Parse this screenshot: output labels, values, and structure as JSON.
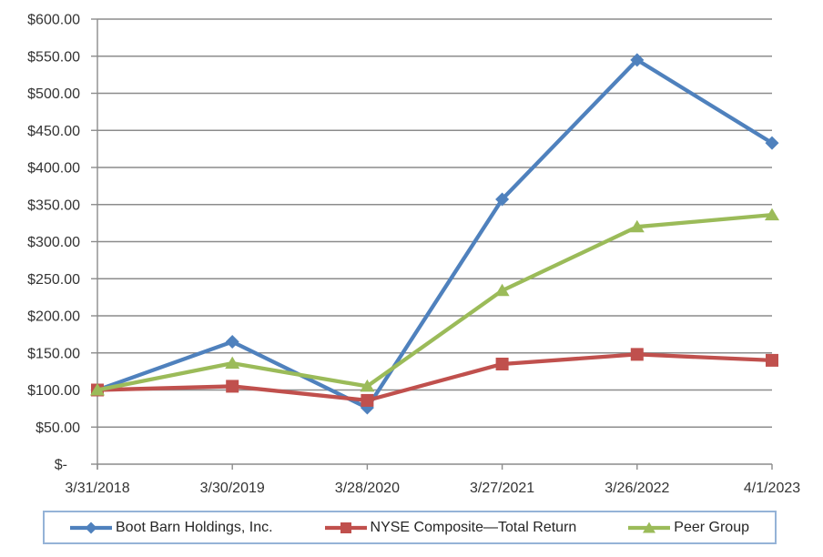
{
  "chart_data": {
    "type": "line",
    "title": "",
    "xlabel": "",
    "ylabel": "",
    "categories": [
      "3/31/2018",
      "3/30/2019",
      "3/28/2020",
      "3/27/2021",
      "3/26/2022",
      "4/1/2023"
    ],
    "series": [
      {
        "name": "Boot Barn Holdings, Inc.",
        "marker": "diamond",
        "color": "#4F81BD",
        "values": [
          100.0,
          165.0,
          76.0,
          357.0,
          545.0,
          433.0
        ]
      },
      {
        "name": "NYSE Composite—Total Return",
        "marker": "square",
        "color": "#C0504D",
        "values": [
          100.0,
          105.0,
          86.0,
          135.0,
          148.0,
          140.0
        ]
      },
      {
        "name": "Peer Group",
        "marker": "triangle",
        "color": "#9BBB59",
        "values": [
          100.0,
          136.0,
          105.0,
          234.0,
          320.0,
          336.0
        ]
      }
    ],
    "y_axis": {
      "min": 0,
      "max": 600,
      "step": 50,
      "tick_labels": [
        "$600.00",
        "$550.00",
        "$500.00",
        "$450.00",
        "$400.00",
        "$350.00",
        "$300.00",
        "$250.00",
        "$200.00",
        "$150.00",
        "$100.00",
        "$50.00",
        "$-"
      ]
    },
    "grid": true,
    "legend_position": "bottom",
    "colors": {
      "gridline": "#8C8C8C",
      "axis": "#8C8C8C",
      "text": "#333333",
      "legend_border": "#95B3D7",
      "background": "#FFFFFF"
    }
  }
}
